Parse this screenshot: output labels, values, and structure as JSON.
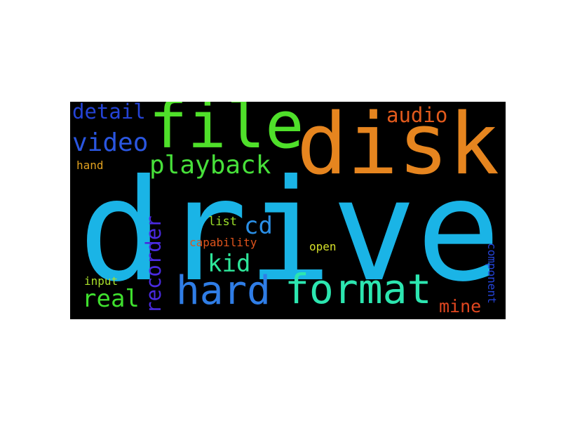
{
  "word_cloud": {
    "words": [
      {
        "id": "drive",
        "text": "drive",
        "color": "#1ab4e6"
      },
      {
        "id": "disk",
        "text": "disk",
        "color": "#e6851f"
      },
      {
        "id": "file",
        "text": "file",
        "color": "#4fe02a"
      },
      {
        "id": "format",
        "text": "format",
        "color": "#2ce6b0"
      },
      {
        "id": "hard",
        "text": "hard",
        "color": "#2f7de6"
      },
      {
        "id": "playback",
        "text": "playback",
        "color": "#47e03a"
      },
      {
        "id": "video",
        "text": "video",
        "color": "#2a56e0"
      },
      {
        "id": "recorder",
        "text": "recorder",
        "color": "#4a2ae0"
      },
      {
        "id": "kid",
        "text": "kid",
        "color": "#2ee69a"
      },
      {
        "id": "real",
        "text": "real",
        "color": "#3fe02e"
      },
      {
        "id": "cd",
        "text": "cd",
        "color": "#2a8fe6"
      },
      {
        "id": "detail",
        "text": "detail",
        "color": "#2443d6"
      },
      {
        "id": "audio",
        "text": "audio",
        "color": "#e25a1c"
      },
      {
        "id": "mine",
        "text": "mine",
        "color": "#e0461f"
      },
      {
        "id": "hand",
        "text": "hand",
        "color": "#e0a01f"
      },
      {
        "id": "list",
        "text": "list",
        "color": "#9be02a"
      },
      {
        "id": "capability",
        "text": "capability",
        "color": "#e0541c"
      },
      {
        "id": "open",
        "text": "open",
        "color": "#d6e02a"
      },
      {
        "id": "input",
        "text": "input",
        "color": "#a9e02a"
      },
      {
        "id": "component",
        "text": "component",
        "color": "#2443d6"
      }
    ]
  }
}
